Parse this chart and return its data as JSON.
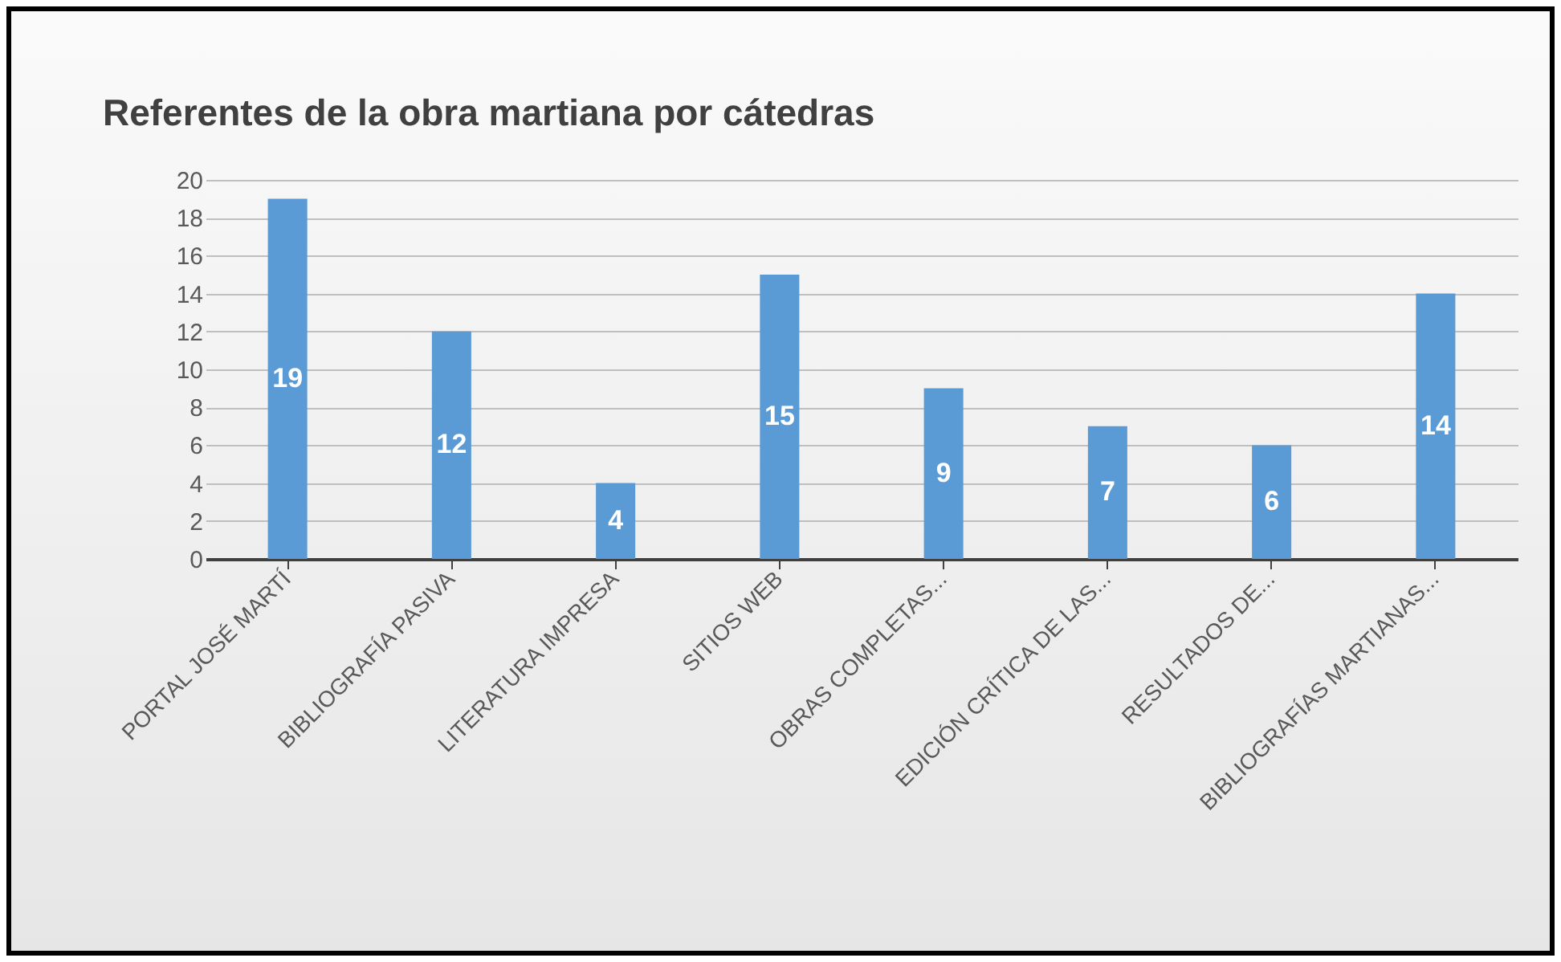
{
  "chart_data": {
    "type": "bar",
    "title": "Referentes de la obra martiana por cátedras",
    "categories": [
      "PORTAL JOSÉ MARTÍ",
      "BIBLIOGRAFÍA PASIVA",
      "LITERATURA IMPRESA",
      "SITIOS WEB",
      "OBRAS COMPLETAS...",
      "EDICIÓN CRÍTICA DE LAS...",
      "RESULTADOS DE...",
      "BIBLIOGRAFÍAS MARTIANAS..."
    ],
    "values": [
      19,
      12,
      4,
      15,
      9,
      7,
      6,
      14
    ],
    "color": "#5b9bd5",
    "ylim": [
      0,
      20
    ],
    "yticks": [
      0,
      2,
      4,
      6,
      8,
      10,
      12,
      14,
      16,
      18,
      20
    ],
    "grid": "y",
    "data_labels": true
  }
}
